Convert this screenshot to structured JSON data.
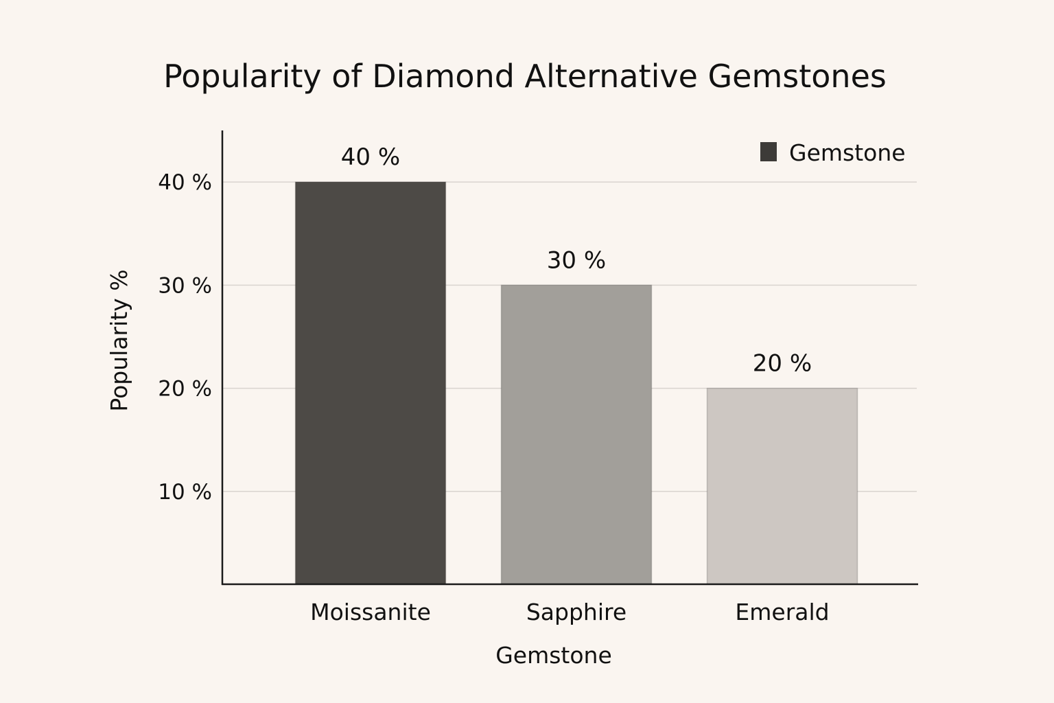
{
  "chart_data": {
    "type": "bar",
    "title": "Popularity of Diamond Alternative Gemstones",
    "xlabel": "Gemstone",
    "ylabel": "Popularity %",
    "categories": [
      "Moissanite",
      "Sapphire",
      "Emerald"
    ],
    "values": [
      40,
      30,
      20
    ],
    "data_labels": [
      "40 %",
      "30 %",
      "20 %"
    ],
    "colors": [
      "#4d4a46",
      "#a29f9a",
      "#cdc7c2"
    ],
    "series": [
      {
        "name": "Gemstone",
        "values": [
          40,
          30,
          20
        ]
      }
    ],
    "legend": {
      "labels": [
        "Gemstone"
      ],
      "position": "top-right",
      "swatch_color": "#3d3b38"
    },
    "y_ticks": [
      10,
      20,
      30,
      40
    ],
    "y_tick_labels": [
      "10 %",
      "20 %",
      "30 %",
      "40 %"
    ],
    "ylim": [
      1,
      45
    ],
    "grid": true
  }
}
